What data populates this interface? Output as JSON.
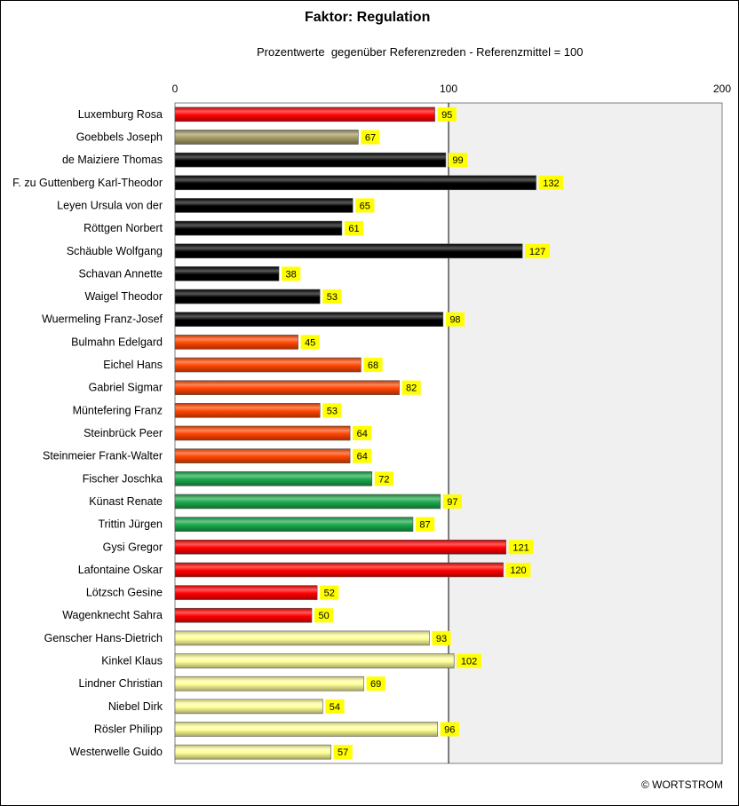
{
  "title": "Faktor: Regulation",
  "subtitle": "Prozentwerte  gegenüber Referenzreden - Referenzmittel = 100",
  "copyright": "© WORTSTROM",
  "chart_data": {
    "type": "bar",
    "orientation": "horizontal",
    "title": "Faktor: Regulation",
    "subtitle": "Prozentwerte  gegenüber Referenzreden - Referenzmittel = 100",
    "xlim": [
      0,
      200
    ],
    "xticks": [
      0,
      100,
      200
    ],
    "reference_line": 100,
    "categories": [
      "Luxemburg Rosa",
      "Goebbels Joseph",
      "de Maiziere Thomas",
      "F. zu Guttenberg Karl-Theodor",
      "Leyen Ursula von der",
      "Röttgen Norbert",
      "Schäuble Wolfgang",
      "Schavan Annette",
      "Waigel Theodor",
      "Wuermeling Franz-Josef",
      "Bulmahn Edelgard",
      "Eichel Hans",
      "Gabriel Sigmar",
      "Müntefering Franz",
      "Steinbrück Peer",
      "Steinmeier Frank-Walter",
      "Fischer Joschka",
      "Künast Renate",
      "Trittin Jürgen",
      "Gysi Gregor",
      "Lafontaine Oskar",
      "Lötzsch Gesine",
      "Wagenknecht Sahra",
      "Genscher Hans-Dietrich",
      "Kinkel Klaus",
      "Lindner Christian",
      "Niebel Dirk",
      "Rösler Philipp",
      "Westerwelle Guido"
    ],
    "values": [
      95,
      67,
      99,
      132,
      65,
      61,
      127,
      38,
      53,
      98,
      45,
      68,
      82,
      53,
      64,
      64,
      72,
      97,
      87,
      121,
      120,
      52,
      50,
      93,
      102,
      69,
      54,
      96,
      57
    ],
    "colors": [
      "#ff0000",
      "#a39a62",
      "#000000",
      "#000000",
      "#000000",
      "#000000",
      "#000000",
      "#000000",
      "#000000",
      "#000000",
      "#ff4500",
      "#ff4500",
      "#ff4500",
      "#ff4500",
      "#ff4500",
      "#ff4500",
      "#1aa84a",
      "#1aa84a",
      "#1aa84a",
      "#ff0000",
      "#ff0000",
      "#ff0000",
      "#ff0000",
      "#ffff99",
      "#ffff99",
      "#ffff99",
      "#ffff99",
      "#ffff99",
      "#ffff99"
    ],
    "label_background": "#ffff00",
    "plot_background_right_of_reference": "#f0f0f0"
  }
}
